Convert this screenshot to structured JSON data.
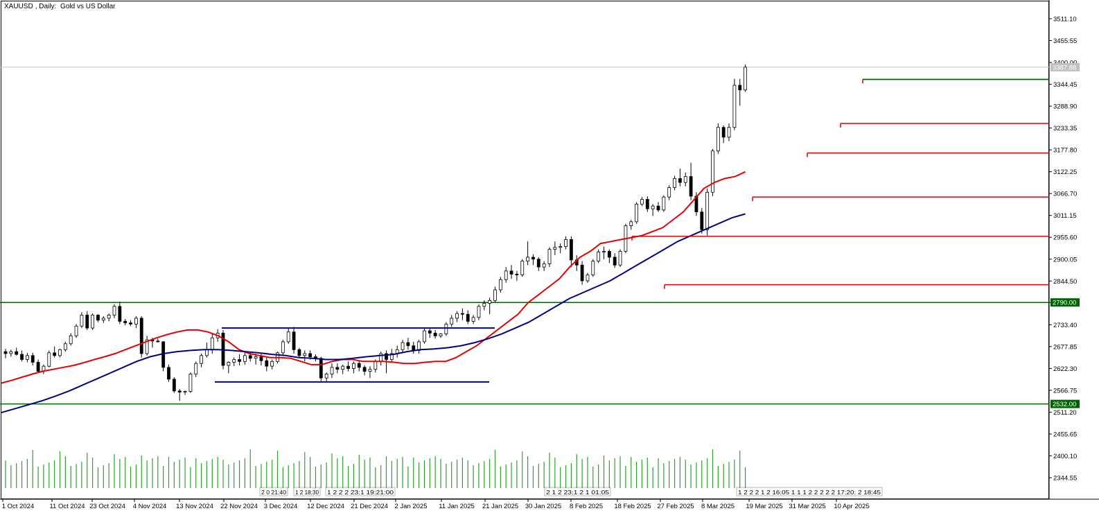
{
  "header": {
    "symbol": "XAUUSD",
    "timeframe": "Daily:",
    "description": "Gold vs US Dollar"
  },
  "colors": {
    "background": "#ffffff",
    "candle_up_fill": "#ffffff",
    "candle_down_fill": "#000000",
    "candle_border": "#000000",
    "ma_fast": "#e60000",
    "ma_slow": "#000080",
    "support_resistance": "#e60000",
    "channel": "#000080",
    "horizontal_green": "#006400",
    "volume": "#2ca02c",
    "price_label_bg": "#006400",
    "current_price_label_bg": "#c0c0c0"
  },
  "chart_data": {
    "type": "candlestick",
    "title": "XAUUSD, Daily: Gold vs US Dollar",
    "ylim": [
      2290,
      3560
    ],
    "y_ticks": [
      "3511.10",
      "3455.55",
      "3400.00",
      "3344.45",
      "3288.90",
      "3233.35",
      "3177.80",
      "3122.25",
      "3066.70",
      "3011.15",
      "2955.60",
      "2900.05",
      "2844.50",
      "2790.00",
      "2733.40",
      "2677.85",
      "2622.30",
      "2566.75",
      "2511.20",
      "2455.65",
      "2400.10",
      "2344.55"
    ],
    "x_labels": [
      "1 Oct 2024",
      "11 Oct 2024",
      "23 Oct 2024",
      "4 Nov 2024",
      "13 Nov 2024",
      "22 Nov 2024",
      "3 Dec 2024",
      "12 Dec 2024",
      "21 Dec 2024",
      "2 Jan 2025",
      "11 Jan 2025",
      "21 Jan 2025",
      "30 Jan 2025",
      "8 Feb 2025",
      "18 Feb 2025",
      "27 Feb 2025",
      "8 Mar 2025",
      "19 Mar 2025",
      "31 Mar 2025",
      "10 Apr 2025"
    ],
    "time_labels_compressed": [
      "2 0 21:40",
      "1 2 18:30",
      "1 2 2 2 23:1 19:21:00",
      "2 1 2 23:1 2 1 01:05",
      "1 2 2 2 1 2 16:05 1 1 1 2 2 2 2 2 17:20: 2 18:45"
    ],
    "price_labels": [
      {
        "price": 2790.0,
        "text": "2790.00",
        "style": "green"
      },
      {
        "price": 2532.0,
        "text": "2532.00",
        "style": "green"
      },
      {
        "price": 3387.88,
        "text": "3387.88",
        "style": "grey"
      }
    ],
    "horizontal_lines": {
      "green": [
        2790.0,
        2532.0
      ],
      "current_price": 3387.88
    },
    "red_levels": [
      {
        "price": 3357.0
      },
      {
        "price": 3245.0
      },
      {
        "price": 3170.0
      },
      {
        "price": 3058.0
      },
      {
        "price": 2958.0
      },
      {
        "price": 2835.0
      }
    ],
    "channel_lines": [
      {
        "price": 2725.0
      },
      {
        "price": 2588.0
      }
    ],
    "ohlc": [
      [
        2665,
        2672,
        2648,
        2660
      ],
      [
        2660,
        2670,
        2652,
        2665
      ],
      [
        2665,
        2675,
        2655,
        2658
      ],
      [
        2658,
        2668,
        2640,
        2645
      ],
      [
        2645,
        2662,
        2638,
        2655
      ],
      [
        2655,
        2662,
        2630,
        2638
      ],
      [
        2638,
        2645,
        2610,
        2615
      ],
      [
        2615,
        2632,
        2608,
        2628
      ],
      [
        2628,
        2668,
        2625,
        2662
      ],
      [
        2662,
        2678,
        2650,
        2655
      ],
      [
        2655,
        2672,
        2650,
        2670
      ],
      [
        2670,
        2690,
        2665,
        2685
      ],
      [
        2685,
        2712,
        2680,
        2705
      ],
      [
        2705,
        2735,
        2700,
        2730
      ],
      [
        2730,
        2765,
        2725,
        2758
      ],
      [
        2758,
        2768,
        2720,
        2725
      ],
      [
        2725,
        2762,
        2720,
        2758
      ],
      [
        2758,
        2760,
        2740,
        2745
      ],
      [
        2745,
        2755,
        2738,
        2750
      ],
      [
        2750,
        2762,
        2742,
        2758
      ],
      [
        2758,
        2785,
        2750,
        2780
      ],
      [
        2780,
        2792,
        2735,
        2742
      ],
      [
        2742,
        2748,
        2732,
        2738
      ],
      [
        2738,
        2745,
        2730,
        2735
      ],
      [
        2735,
        2755,
        2725,
        2750
      ],
      [
        2750,
        2755,
        2650,
        2660
      ],
      [
        2660,
        2705,
        2655,
        2695
      ],
      [
        2695,
        2700,
        2675,
        2692
      ],
      [
        2692,
        2698,
        2688,
        2690
      ],
      [
        2690,
        2692,
        2615,
        2625
      ],
      [
        2625,
        2632,
        2588,
        2595
      ],
      [
        2595,
        2600,
        2560,
        2565
      ],
      [
        2565,
        2570,
        2540,
        2562
      ],
      [
        2562,
        2566,
        2555,
        2564
      ],
      [
        2564,
        2612,
        2560,
        2608
      ],
      [
        2608,
        2640,
        2600,
        2635
      ],
      [
        2635,
        2660,
        2625,
        2655
      ],
      [
        2655,
        2688,
        2650,
        2670
      ],
      [
        2670,
        2712,
        2660,
        2700
      ],
      [
        2700,
        2722,
        2690,
        2712
      ],
      [
        2712,
        2720,
        2620,
        2630
      ],
      [
        2630,
        2640,
        2610,
        2638
      ],
      [
        2638,
        2650,
        2628,
        2645
      ],
      [
        2645,
        2658,
        2630,
        2640
      ],
      [
        2640,
        2665,
        2632,
        2655
      ],
      [
        2655,
        2665,
        2640,
        2648
      ],
      [
        2648,
        2660,
        2632,
        2652
      ],
      [
        2652,
        2662,
        2630,
        2642
      ],
      [
        2642,
        2650,
        2615,
        2628
      ],
      [
        2628,
        2645,
        2620,
        2640
      ],
      [
        2640,
        2665,
        2635,
        2662
      ],
      [
        2662,
        2695,
        2655,
        2690
      ],
      [
        2690,
        2725,
        2685,
        2715
      ],
      [
        2715,
        2728,
        2660,
        2670
      ],
      [
        2670,
        2675,
        2648,
        2655
      ],
      [
        2655,
        2668,
        2640,
        2660
      ],
      [
        2660,
        2668,
        2645,
        2652
      ],
      [
        2652,
        2658,
        2640,
        2648
      ],
      [
        2648,
        2652,
        2590,
        2598
      ],
      [
        2598,
        2612,
        2590,
        2608
      ],
      [
        2608,
        2635,
        2598,
        2625
      ],
      [
        2625,
        2635,
        2610,
        2620
      ],
      [
        2620,
        2632,
        2608,
        2628
      ],
      [
        2628,
        2640,
        2615,
        2622
      ],
      [
        2622,
        2640,
        2610,
        2635
      ],
      [
        2635,
        2642,
        2615,
        2625
      ],
      [
        2625,
        2630,
        2605,
        2615
      ],
      [
        2615,
        2628,
        2598,
        2620
      ],
      [
        2620,
        2645,
        2612,
        2640
      ],
      [
        2640,
        2665,
        2630,
        2660
      ],
      [
        2660,
        2668,
        2610,
        2645
      ],
      [
        2645,
        2672,
        2638,
        2660
      ],
      [
        2660,
        2680,
        2650,
        2670
      ],
      [
        2670,
        2695,
        2662,
        2688
      ],
      [
        2688,
        2700,
        2670,
        2680
      ],
      [
        2680,
        2690,
        2660,
        2668
      ],
      [
        2668,
        2695,
        2660,
        2690
      ],
      [
        2690,
        2725,
        2685,
        2718
      ],
      [
        2718,
        2725,
        2700,
        2712
      ],
      [
        2712,
        2720,
        2698,
        2705
      ],
      [
        2705,
        2712,
        2700,
        2710
      ],
      [
        2710,
        2740,
        2705,
        2735
      ],
      [
        2735,
        2758,
        2728,
        2750
      ],
      [
        2750,
        2768,
        2740,
        2762
      ],
      [
        2762,
        2775,
        2745,
        2760
      ],
      [
        2760,
        2770,
        2735,
        2742
      ],
      [
        2742,
        2758,
        2735,
        2752
      ],
      [
        2752,
        2785,
        2745,
        2780
      ],
      [
        2780,
        2795,
        2770,
        2788
      ],
      [
        2788,
        2802,
        2760,
        2795
      ],
      [
        2795,
        2830,
        2790,
        2822
      ],
      [
        2822,
        2855,
        2815,
        2848
      ],
      [
        2848,
        2880,
        2840,
        2870
      ],
      [
        2870,
        2885,
        2850,
        2862
      ],
      [
        2862,
        2870,
        2845,
        2860
      ],
      [
        2860,
        2900,
        2855,
        2895
      ],
      [
        2895,
        2945,
        2885,
        2905
      ],
      [
        2905,
        2912,
        2885,
        2900
      ],
      [
        2900,
        2905,
        2870,
        2880
      ],
      [
        2880,
        2895,
        2870,
        2888
      ],
      [
        2888,
        2930,
        2880,
        2925
      ],
      [
        2925,
        2945,
        2910,
        2930
      ],
      [
        2930,
        2940,
        2915,
        2932
      ],
      [
        2932,
        2958,
        2925,
        2950
      ],
      [
        2950,
        2958,
        2880,
        2898
      ],
      [
        2898,
        2910,
        2870,
        2885
      ],
      [
        2885,
        2895,
        2835,
        2845
      ],
      [
        2845,
        2865,
        2840,
        2860
      ],
      [
        2860,
        2900,
        2855,
        2895
      ],
      [
        2895,
        2925,
        2890,
        2918
      ],
      [
        2918,
        2932,
        2900,
        2920
      ],
      [
        2920,
        2925,
        2890,
        2905
      ],
      [
        2905,
        2915,
        2878,
        2885
      ],
      [
        2885,
        2925,
        2880,
        2920
      ],
      [
        2920,
        2990,
        2915,
        2985
      ],
      [
        2985,
        3000,
        2975,
        2995
      ],
      [
        2995,
        3045,
        2990,
        3040
      ],
      [
        3040,
        3058,
        3035,
        3052
      ],
      [
        3052,
        3060,
        3020,
        3028
      ],
      [
        3028,
        3040,
        3010,
        3035
      ],
      [
        3035,
        3045,
        3020,
        3025
      ],
      [
        3025,
        3062,
        3020,
        3058
      ],
      [
        3058,
        3088,
        3050,
        3082
      ],
      [
        3082,
        3112,
        3075,
        3105
      ],
      [
        3105,
        3130,
        3085,
        3095
      ],
      [
        3095,
        3120,
        3085,
        3110
      ],
      [
        3110,
        3145,
        3050,
        3060
      ],
      [
        3060,
        3070,
        3010,
        3020
      ],
      [
        3020,
        3030,
        2965,
        2975
      ],
      [
        2975,
        3080,
        2960,
        3070
      ],
      [
        3070,
        3180,
        3060,
        3175
      ],
      [
        3175,
        3245,
        3168,
        3235
      ],
      [
        3235,
        3240,
        3195,
        3210
      ],
      [
        3210,
        3245,
        3200,
        3235
      ],
      [
        3235,
        3358,
        3228,
        3342
      ],
      [
        3342,
        3358,
        3290,
        3330
      ],
      [
        3330,
        3395,
        3325,
        3388
      ]
    ],
    "ma_fast": [
      2585,
      2592,
      2600,
      2608,
      2615,
      2620,
      2625,
      2630,
      2637,
      2645,
      2652,
      2660,
      2670,
      2680,
      2690,
      2700,
      2708,
      2715,
      2720,
      2720,
      2715,
      2705,
      2690,
      2670,
      2660,
      2655,
      2650,
      2650,
      2648,
      2640,
      2632,
      2632,
      2640,
      2645,
      2645,
      2640,
      2640,
      2640,
      2638,
      2635,
      2635,
      2638,
      2640,
      2640,
      2650,
      2665,
      2680,
      2700,
      2720,
      2740,
      2760,
      2790,
      2810,
      2830,
      2850,
      2880,
      2905,
      2920,
      2940,
      2945,
      2950,
      2955,
      2960,
      2970,
      2980,
      3000,
      3020,
      3050,
      3080,
      3095,
      3105,
      3110,
      3122
    ],
    "ma_slow": [
      2510,
      2520,
      2530,
      2540,
      2552,
      2565,
      2580,
      2595,
      2610,
      2625,
      2640,
      2652,
      2660,
      2665,
      2668,
      2670,
      2670,
      2668,
      2665,
      2662,
      2658,
      2655,
      2650,
      2648,
      2645,
      2645,
      2648,
      2652,
      2655,
      2658,
      2665,
      2670,
      2672,
      2675,
      2680,
      2688,
      2698,
      2710,
      2725,
      2740,
      2760,
      2780,
      2800,
      2815,
      2830,
      2845,
      2865,
      2885,
      2905,
      2925,
      2945,
      2960,
      2975,
      2990,
      3005,
      3015
    ]
  }
}
